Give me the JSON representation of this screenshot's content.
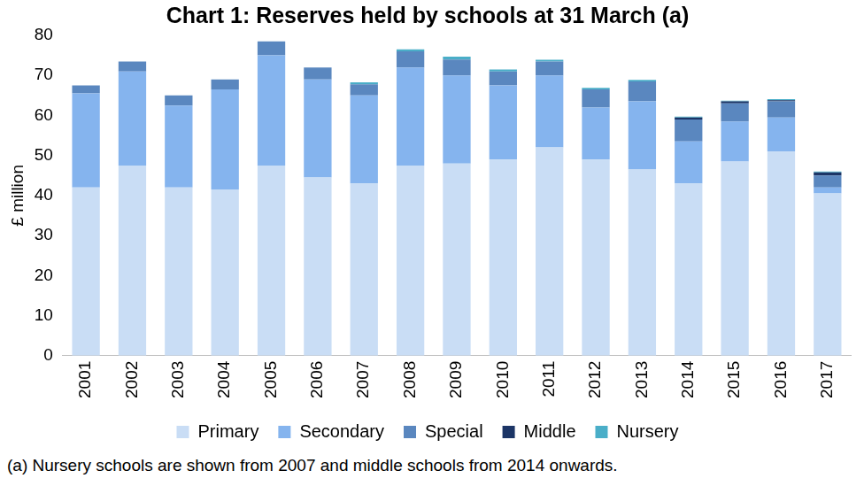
{
  "chart_data": {
    "type": "bar",
    "title": "Chart 1: Reserves held by schools at 31 March (a)",
    "y_label": "£ million",
    "annotations": [
      "(a)  Nursery schools are shown from 2007 and middle schools from 2014 onwards."
    ],
    "categories": [
      "2001",
      "2002",
      "2003",
      "2004",
      "2005",
      "2006",
      "2007",
      "2008",
      "2009",
      "2010",
      "2011",
      "2012",
      "2013",
      "2014",
      "2015",
      "2016",
      "2017"
    ],
    "series": [
      {
        "name": "Primary",
        "color": "#c9ddf5",
        "values": [
          42,
          47.5,
          42,
          41.5,
          47.5,
          44.5,
          43,
          47.5,
          48,
          49,
          52,
          49,
          46.5,
          43,
          48.5,
          51,
          40.5
        ]
      },
      {
        "name": "Secondary",
        "color": "#85b4ee",
        "values": [
          23.5,
          23.5,
          20.5,
          25,
          27.5,
          24.5,
          22,
          24.5,
          22,
          18.5,
          18,
          13,
          17,
          10.5,
          10,
          8.5,
          1.5
        ]
      },
      {
        "name": "Special",
        "color": "#5a87bf",
        "values": [
          2,
          2.5,
          2.5,
          2.5,
          3.5,
          3,
          2.8,
          4,
          4,
          3.5,
          3.5,
          4.5,
          5,
          5.5,
          4.5,
          4,
          3
        ]
      },
      {
        "name": "Middle",
        "color": "#1c3566",
        "values": [
          null,
          null,
          null,
          null,
          null,
          null,
          null,
          null,
          null,
          null,
          null,
          null,
          null,
          0.5,
          0.5,
          0.3,
          0.8
        ]
      },
      {
        "name": "Nursery",
        "color": "#4aaec8",
        "values": [
          null,
          null,
          null,
          null,
          null,
          null,
          0.5,
          0.5,
          0.7,
          0.5,
          0.4,
          0.4,
          0.4,
          0.2,
          0.2,
          0.3,
          0.2
        ]
      }
    ],
    "stacked": true,
    "ylim": [
      0,
      80
    ],
    "yticks": [
      0,
      10,
      20,
      30,
      40,
      50,
      60,
      70,
      80
    ],
    "grid": false,
    "legend": "bottom"
  }
}
